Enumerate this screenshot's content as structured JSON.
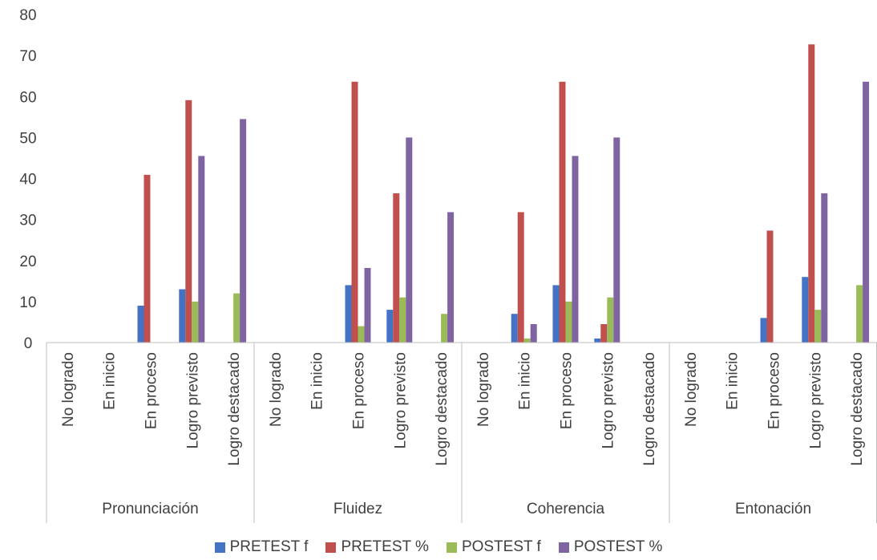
{
  "chart_data": {
    "type": "bar",
    "groups": [
      {
        "name": "Pronunciación",
        "categories": [
          "No logrado",
          "En inicio",
          "En proceso",
          "Logro previsto",
          "Logro destacado"
        ]
      },
      {
        "name": "Fluidez",
        "categories": [
          "No logrado",
          "En inicio",
          "En proceso",
          "Logro previsto",
          "Logro destacado"
        ]
      },
      {
        "name": "Coherencia",
        "categories": [
          "No logrado",
          "En inicio",
          "En proceso",
          "Logro previsto",
          "Logro destacado"
        ]
      },
      {
        "name": "Entonación",
        "categories": [
          "No logrado",
          "En inicio",
          "En proceso",
          "Logro previsto",
          "Logro destacado"
        ]
      }
    ],
    "series": [
      {
        "name": "PRETEST f",
        "color": "#4472C4",
        "values": [
          0,
          0,
          9,
          13,
          0,
          0,
          0,
          14,
          8,
          0,
          0,
          7,
          14,
          1,
          0,
          0,
          0,
          6,
          16,
          0
        ]
      },
      {
        "name": "PRETEST %",
        "color": "#C0504D",
        "values": [
          0,
          0,
          40.9,
          59.1,
          0,
          0,
          0,
          63.6,
          36.4,
          0,
          0,
          31.8,
          63.6,
          4.5,
          0,
          0,
          0,
          27.3,
          72.7,
          0
        ]
      },
      {
        "name": "POSTEST f",
        "color": "#9BBB59",
        "values": [
          0,
          0,
          0,
          10,
          12,
          0,
          0,
          4,
          11,
          7,
          0,
          1,
          10,
          11,
          0,
          0,
          0,
          0,
          8,
          14
        ]
      },
      {
        "name": "POSTEST %",
        "color": "#8064A2",
        "values": [
          0,
          0,
          0,
          45.5,
          54.5,
          0,
          0,
          18.2,
          50,
          31.8,
          0,
          4.5,
          45.5,
          50,
          0,
          0,
          0,
          0,
          36.4,
          63.6
        ]
      }
    ],
    "ylim": [
      0,
      80
    ],
    "yticks": [
      0,
      10,
      20,
      30,
      40,
      50,
      60,
      70,
      80
    ],
    "grid": false,
    "legend_position": "bottom"
  }
}
